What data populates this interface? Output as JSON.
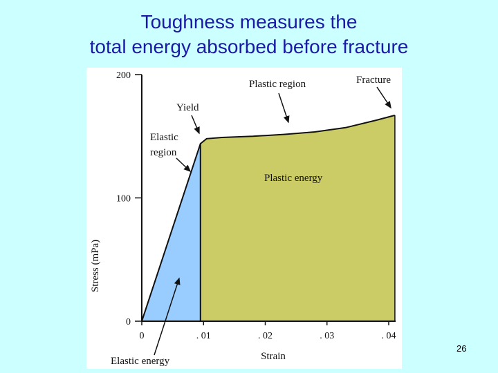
{
  "slide": {
    "title_line1": "Toughness measures the",
    "title_line2": "total energy absorbed before fracture",
    "page_number": "26",
    "background_color": "#ccffff",
    "title_color": "#1a1aa6"
  },
  "chart_data": {
    "type": "area",
    "xlabel": "Strain",
    "ylabel": "Stress (mPa)",
    "xlim": [
      0,
      0.04
    ],
    "ylim": [
      0,
      200
    ],
    "x_ticks": [
      0,
      0.01,
      0.02,
      0.03,
      0.04
    ],
    "x_tick_labels": [
      "0",
      ". 01",
      ". 02",
      ". 03",
      ". 04"
    ],
    "y_ticks": [
      0,
      100,
      200
    ],
    "y_tick_labels": [
      "0",
      "100",
      "200"
    ],
    "curve": {
      "x": [
        0,
        0.0095,
        0.0105,
        0.013,
        0.018,
        0.023,
        0.028,
        0.033,
        0.038,
        0.041
      ],
      "y": [
        0,
        144,
        148,
        149,
        150,
        151.5,
        153.5,
        157,
        163,
        167
      ]
    },
    "regions": [
      {
        "name": "Elastic energy",
        "x_from": 0,
        "x_to": 0.0095,
        "color": "#99ccff"
      },
      {
        "name": "Plastic energy",
        "x_from": 0.0095,
        "x_to": 0.041,
        "color": "#cccc66"
      }
    ],
    "annotations": {
      "plastic_region": "Plastic region",
      "fracture": "Fracture",
      "yield": "Yield",
      "elastic_region_line1": "Elastic",
      "elastic_region_line2": "region",
      "plastic_energy": "Plastic energy",
      "elastic_energy": "Elastic energy"
    },
    "grid": false,
    "legend": "none"
  }
}
